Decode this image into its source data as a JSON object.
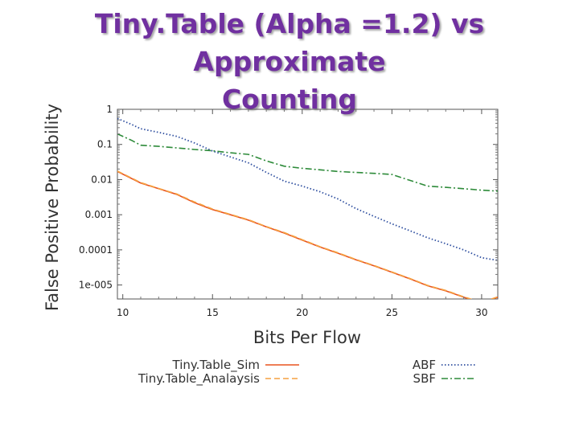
{
  "slide": {
    "title": "Tiny.Table (Alpha =1.2) vs Approximate\nCounting"
  },
  "chart_data": {
    "type": "line",
    "xlabel": "Bits Per Flow",
    "ylabel": "False Positive Probability",
    "xlim": [
      9.7,
      30.9
    ],
    "ylim": [
      4e-06,
      1
    ],
    "yscale": "log",
    "xticks": [
      10,
      15,
      20,
      25,
      30
    ],
    "yticks": [
      1,
      0.1,
      0.01,
      0.001,
      0.0001,
      1e-05
    ],
    "ytick_labels": [
      "1",
      "0.1",
      "0.01",
      "0.001",
      "0.0001",
      "1e-005"
    ],
    "grid": false,
    "legend": "bottom",
    "series": [
      {
        "name": "Tiny.Table_Sim",
        "color": "#e8541e",
        "style": "solid",
        "x": [
          9.7,
          11,
          12,
          13,
          14,
          15,
          16,
          17,
          18,
          19,
          20,
          21,
          22,
          23,
          24,
          25,
          26,
          27,
          28,
          29,
          30,
          30.9
        ],
        "y": [
          0.017,
          0.008,
          0.0055,
          0.0038,
          0.0022,
          0.0014,
          0.001,
          0.0007,
          0.00045,
          0.0003,
          0.00019,
          0.00012,
          8e-05,
          5.2e-05,
          3.5e-05,
          2.3e-05,
          1.5e-05,
          9.5e-06,
          6.8e-06,
          4.5e-06,
          3.1e-06,
          4.5e-06
        ]
      },
      {
        "name": "Tiny.Table_Analaysis",
        "color": "#f5a040",
        "style": "dashed",
        "x": [
          9.7,
          11,
          12,
          13,
          14,
          15,
          16,
          17,
          18,
          19,
          20,
          21,
          22,
          23,
          24,
          25,
          26,
          27,
          28,
          29,
          30,
          30.9
        ],
        "y": [
          0.0175,
          0.0082,
          0.0056,
          0.0039,
          0.0023,
          0.00145,
          0.00102,
          0.00072,
          0.00046,
          0.00031,
          0.000195,
          0.000123,
          8.2e-05,
          5.3e-05,
          3.6e-05,
          2.35e-05,
          1.53e-05,
          9.7e-06,
          7e-06,
          4.6e-06,
          3.2e-06,
          4.6e-06
        ]
      },
      {
        "name": "ABF",
        "color": "#3050a0",
        "style": "dotted",
        "x": [
          9.7,
          10.5,
          11,
          12,
          13,
          14,
          15,
          16,
          17,
          18,
          19,
          20,
          21,
          22,
          23,
          24,
          25,
          26,
          27,
          28,
          29,
          30,
          30.9
        ],
        "y": [
          0.55,
          0.37,
          0.28,
          0.22,
          0.17,
          0.11,
          0.065,
          0.044,
          0.03,
          0.016,
          0.009,
          0.0065,
          0.0045,
          0.0028,
          0.0015,
          0.0009,
          0.00055,
          0.00035,
          0.00022,
          0.00015,
          0.0001,
          6e-05,
          5e-05
        ]
      },
      {
        "name": "SBF",
        "color": "#2e8b3a",
        "style": "dashdot",
        "x": [
          9.7,
          10.5,
          11,
          12,
          13,
          14,
          15,
          16,
          17,
          18,
          19,
          20,
          21,
          22,
          23,
          24,
          25,
          26,
          27,
          28,
          29,
          30,
          30.9
        ],
        "y": [
          0.2,
          0.13,
          0.095,
          0.088,
          0.08,
          0.072,
          0.066,
          0.058,
          0.052,
          0.034,
          0.024,
          0.021,
          0.019,
          0.017,
          0.016,
          0.015,
          0.014,
          0.0095,
          0.0065,
          0.006,
          0.0055,
          0.005,
          0.0047
        ]
      }
    ]
  }
}
